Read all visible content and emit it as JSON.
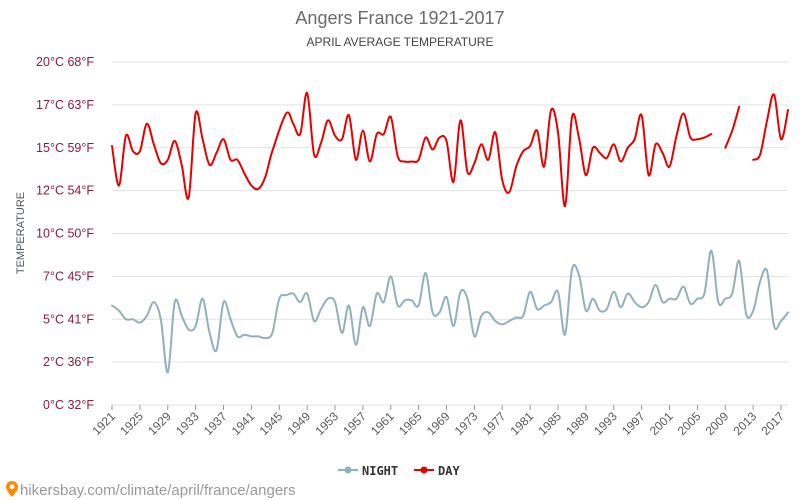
{
  "colors": {
    "night": "#92b0bc",
    "day": "#e80000",
    "grid": "#e3e3e3",
    "pin": "#ff8a00"
  },
  "footer": {
    "text": "hikersbay.com/climate/april/france/angers",
    "icon": "map-pin-icon"
  },
  "chart_data": {
    "type": "line",
    "title": "Angers France 1921-2017",
    "subtitle": "APRIL AVERAGE TEMPERATURE",
    "ylabel": "TEMPERATURE",
    "ylim": [
      0,
      20
    ],
    "y_ticks": [
      {
        "value": 0,
        "label": "0°C 32°F"
      },
      {
        "value": 2.5,
        "label": "2°C 36°F"
      },
      {
        "value": 5,
        "label": "5°C 41°F"
      },
      {
        "value": 7.5,
        "label": "7°C 45°F"
      },
      {
        "value": 10,
        "label": "10°C 50°F"
      },
      {
        "value": 12.5,
        "label": "12°C 54°F"
      },
      {
        "value": 15,
        "label": "15°C 59°F"
      },
      {
        "value": 17.5,
        "label": "17°C 63°F"
      },
      {
        "value": 20,
        "label": "20°C 68°F"
      }
    ],
    "x_range": [
      1921,
      2018
    ],
    "x_ticks": [
      "1921",
      "1925",
      "1929",
      "1933",
      "1937",
      "1941",
      "1945",
      "1949",
      "1953",
      "1957",
      "1961",
      "1965",
      "1969",
      "1973",
      "1977",
      "1981",
      "1985",
      "1989",
      "1993",
      "1997",
      "2001",
      "2005",
      "2009",
      "2013",
      "2017"
    ],
    "legend": [
      "NIGHT",
      "DAY"
    ],
    "legend_position": "bottom",
    "grid": true,
    "series": [
      {
        "name": "DAY",
        "points": [
          [
            1921,
            15.1
          ],
          [
            1922,
            12.8
          ],
          [
            1923,
            15.7
          ],
          [
            1924,
            14.8
          ],
          [
            1925,
            14.8
          ],
          [
            1926,
            16.4
          ],
          [
            1927,
            15.2
          ],
          [
            1928,
            14.1
          ],
          [
            1929,
            14.3
          ],
          [
            1930,
            15.4
          ],
          [
            1931,
            14.0
          ],
          [
            1932,
            12.1
          ],
          [
            1933,
            17.0
          ],
          [
            1934,
            15.5
          ],
          [
            1935,
            14.0
          ],
          [
            1936,
            14.7
          ],
          [
            1937,
            15.5
          ],
          [
            1938,
            14.3
          ],
          [
            1939,
            14.3
          ],
          [
            1940,
            13.5
          ],
          [
            1941,
            12.8
          ],
          [
            1942,
            12.6
          ],
          [
            1943,
            13.3
          ],
          [
            1944,
            14.8
          ],
          [
            1946,
            17.0
          ],
          [
            1947,
            16.4
          ],
          [
            1948,
            15.8
          ],
          [
            1949,
            18.2
          ],
          [
            1950,
            14.6
          ],
          [
            1951,
            15.3
          ],
          [
            1952,
            16.6
          ],
          [
            1953,
            15.7
          ],
          [
            1954,
            15.5
          ],
          [
            1955,
            16.9
          ],
          [
            1956,
            14.3
          ],
          [
            1957,
            16.0
          ],
          [
            1958,
            14.2
          ],
          [
            1959,
            15.8
          ],
          [
            1960,
            15.8
          ],
          [
            1961,
            16.8
          ],
          [
            1962,
            14.5
          ],
          [
            1963,
            14.2
          ],
          [
            1964,
            14.2
          ],
          [
            1965,
            14.3
          ],
          [
            1966,
            15.6
          ],
          [
            1967,
            14.9
          ],
          [
            1968,
            15.6
          ],
          [
            1969,
            15.4
          ],
          [
            1970,
            13.0
          ],
          [
            1971,
            16.6
          ],
          [
            1972,
            13.6
          ],
          [
            1973,
            14.1
          ],
          [
            1974,
            15.2
          ],
          [
            1975,
            14.3
          ],
          [
            1976,
            15.9
          ],
          [
            1977,
            13.1
          ],
          [
            1978,
            12.4
          ],
          [
            1979,
            13.9
          ],
          [
            1980,
            14.8
          ],
          [
            1981,
            15.1
          ],
          [
            1982,
            16.0
          ],
          [
            1983,
            13.9
          ],
          [
            1984,
            17.2
          ],
          [
            1985,
            15.9
          ],
          [
            1986,
            11.6
          ],
          [
            1987,
            16.8
          ],
          [
            1988,
            15.6
          ],
          [
            1989,
            13.4
          ],
          [
            1990,
            15.0
          ],
          [
            1991,
            14.7
          ],
          [
            1992,
            14.4
          ],
          [
            1993,
            15.2
          ],
          [
            1994,
            14.2
          ],
          [
            1995,
            15.0
          ],
          [
            1996,
            15.5
          ],
          [
            1997,
            16.9
          ],
          [
            1998,
            13.4
          ],
          [
            1999,
            15.2
          ],
          [
            2000,
            14.7
          ],
          [
            2001,
            13.9
          ],
          [
            2002,
            15.7
          ],
          [
            2003,
            17.0
          ],
          [
            2004,
            15.6
          ],
          [
            2005,
            15.5
          ],
          [
            2006,
            15.6
          ],
          [
            2007,
            15.8
          ],
          null,
          [
            2009,
            15.0
          ],
          [
            2010,
            16.0
          ],
          [
            2011,
            17.4
          ],
          null,
          [
            2013,
            14.3
          ],
          [
            2014,
            14.6
          ],
          [
            2015,
            16.6
          ],
          [
            2016,
            18.1
          ],
          [
            2017,
            15.5
          ],
          [
            2018,
            17.2
          ]
        ]
      },
      {
        "name": "NIGHT",
        "points": [
          [
            1921,
            5.8
          ],
          [
            1922,
            5.5
          ],
          [
            1923,
            5.0
          ],
          [
            1924,
            5.0
          ],
          [
            1925,
            4.8
          ],
          [
            1926,
            5.2
          ],
          [
            1927,
            6.0
          ],
          [
            1928,
            5.0
          ],
          [
            1929,
            1.9
          ],
          [
            1930,
            6.0
          ],
          [
            1931,
            5.2
          ],
          [
            1932,
            4.4
          ],
          [
            1933,
            4.6
          ],
          [
            1934,
            6.2
          ],
          [
            1935,
            4.2
          ],
          [
            1936,
            3.2
          ],
          [
            1937,
            6.0
          ],
          [
            1938,
            5.0
          ],
          [
            1939,
            4.0
          ],
          [
            1940,
            4.1
          ],
          [
            1941,
            4.0
          ],
          [
            1942,
            4.0
          ],
          [
            1943,
            3.9
          ],
          [
            1944,
            4.2
          ],
          [
            1945,
            6.2
          ],
          [
            1946,
            6.4
          ],
          [
            1947,
            6.5
          ],
          [
            1948,
            6.0
          ],
          [
            1949,
            6.5
          ],
          [
            1950,
            4.9
          ],
          [
            1951,
            5.6
          ],
          [
            1952,
            6.2
          ],
          [
            1953,
            6.0
          ],
          [
            1954,
            4.2
          ],
          [
            1955,
            5.8
          ],
          [
            1956,
            3.5
          ],
          [
            1957,
            5.7
          ],
          [
            1958,
            4.6
          ],
          [
            1959,
            6.5
          ],
          [
            1960,
            6.0
          ],
          [
            1961,
            7.5
          ],
          [
            1962,
            5.8
          ],
          [
            1963,
            6.1
          ],
          [
            1964,
            6.1
          ],
          [
            1965,
            5.8
          ],
          [
            1966,
            7.7
          ],
          [
            1967,
            5.4
          ],
          [
            1968,
            5.4
          ],
          [
            1969,
            6.3
          ],
          [
            1970,
            4.6
          ],
          [
            1971,
            6.6
          ],
          [
            1972,
            6.2
          ],
          [
            1973,
            4.0
          ],
          [
            1974,
            5.2
          ],
          [
            1975,
            5.4
          ],
          [
            1976,
            4.9
          ],
          [
            1977,
            4.7
          ],
          [
            1978,
            4.9
          ],
          [
            1979,
            5.1
          ],
          [
            1980,
            5.2
          ],
          [
            1981,
            6.6
          ],
          [
            1982,
            5.6
          ],
          [
            1983,
            5.8
          ],
          [
            1984,
            6.0
          ],
          [
            1985,
            6.6
          ],
          [
            1986,
            4.1
          ],
          [
            1987,
            7.9
          ],
          [
            1988,
            7.6
          ],
          [
            1989,
            5.5
          ],
          [
            1990,
            6.2
          ],
          [
            1991,
            5.5
          ],
          [
            1992,
            5.6
          ],
          [
            1993,
            6.6
          ],
          [
            1994,
            5.7
          ],
          [
            1995,
            6.5
          ],
          [
            1996,
            6.0
          ],
          [
            1997,
            5.7
          ],
          [
            1998,
            6.0
          ],
          [
            1999,
            7.0
          ],
          [
            2000,
            6.0
          ],
          [
            2001,
            6.2
          ],
          [
            2002,
            6.2
          ],
          [
            2003,
            6.9
          ],
          [
            2004,
            5.9
          ],
          [
            2005,
            6.2
          ],
          [
            2006,
            6.5
          ],
          [
            2007,
            9.0
          ],
          [
            2008,
            6.0
          ],
          [
            2009,
            6.2
          ],
          [
            2010,
            6.5
          ],
          [
            2011,
            8.4
          ],
          [
            2012,
            5.3
          ],
          [
            2013,
            5.5
          ],
          [
            2014,
            7.2
          ],
          [
            2015,
            7.8
          ],
          [
            2016,
            4.6
          ],
          [
            2017,
            4.9
          ],
          [
            2018,
            5.4
          ]
        ]
      }
    ]
  }
}
